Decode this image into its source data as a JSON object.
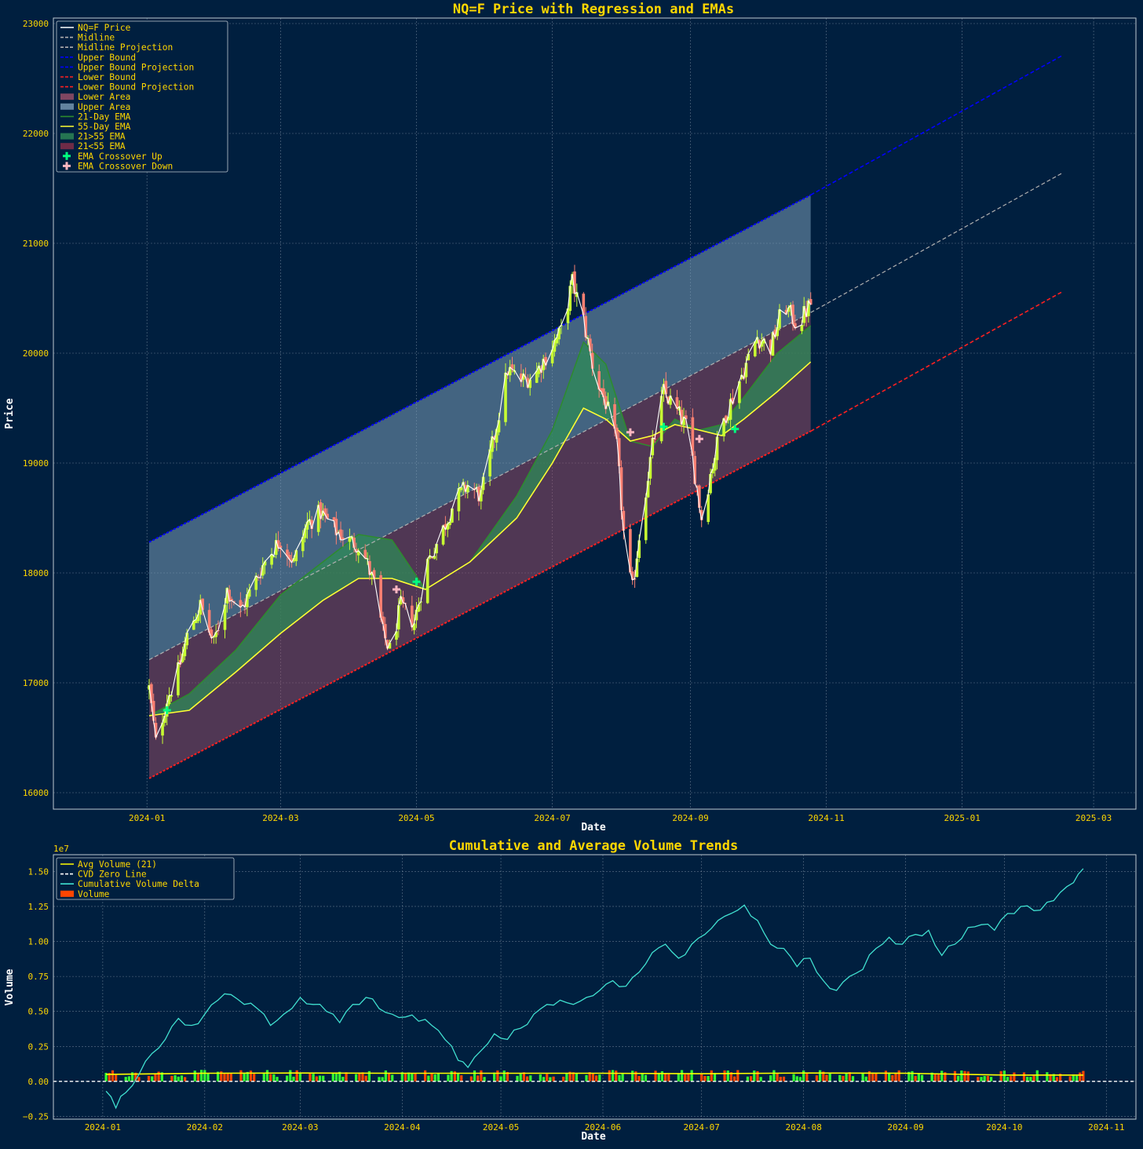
{
  "colors": {
    "background": "#001f3f",
    "title": "#ffd700",
    "axis_text": "#ffffff",
    "tick_text": "#ffd700",
    "grid": "#8899aa",
    "price_line": "#ffffff",
    "midline": "#b0b0b0",
    "upper_bound": "#0000ff",
    "lower_bound": "#ff2020",
    "upper_area": "#7a9cb8",
    "lower_area": "#a0506a",
    "ema21": "#2e8b2e",
    "ema55": "#ffff33",
    "ema_up_fill": "#2e8b57",
    "ema_down_fill": "#8b2e4a",
    "crossover_up": "#00ff7f",
    "crossover_down": "#ffb6c1",
    "candle_up": "#c8ff32",
    "candle_down": "#fa8072",
    "cvd": "#40e0d0",
    "avg_volume": "#ffff00",
    "volume_up": "#32ff32",
    "volume_down": "#ff4500",
    "zero_line": "#ffffff"
  },
  "chart_data": [
    {
      "type": "line",
      "title": "NQ=F Price with Regression and EMAs",
      "xlabel": "Date",
      "ylabel": "Price",
      "x_ticks": [
        "2024-01",
        "2024-03",
        "2024-05",
        "2024-07",
        "2024-09",
        "2024-11",
        "2025-01",
        "2025-03"
      ],
      "y_ticks": [
        16000,
        17000,
        18000,
        19000,
        20000,
        21000,
        22000,
        23000
      ],
      "xlim": [
        "2023-11-20",
        "2025-03-20"
      ],
      "ylim": [
        15850,
        23050
      ],
      "grid": true,
      "legend_position": "top-left",
      "legend": [
        "NQ=F Price",
        "Midline",
        "Midline Projection",
        "Upper Bound",
        "Upper Bound Projection",
        "Lower Bound",
        "Lower Bound Projection",
        "Lower Area",
        "Upper Area",
        "21-Day EMA",
        "55-Day EMA",
        "21>55 EMA",
        "21<55 EMA",
        "EMA Crossover Up",
        "EMA Crossover Down"
      ],
      "regression": {
        "start_date": "2024-01-02",
        "end_date": "2024-10-25",
        "projection_end_date": "2025-02-15",
        "midline_start": 17210,
        "midline_end": 20370,
        "midline_projection_end": 21640,
        "upper_start": 18280,
        "upper_end": 21440,
        "upper_projection_end": 22710,
        "lower_start": 16130,
        "lower_end": 19290,
        "lower_projection_end": 20560
      },
      "price_series": {
        "dates": [
          "2024-01-02",
          "2024-01-05",
          "2024-01-10",
          "2024-01-15",
          "2024-01-20",
          "2024-01-25",
          "2024-01-31",
          "2024-02-06",
          "2024-02-12",
          "2024-02-18",
          "2024-02-24",
          "2024-03-01",
          "2024-03-07",
          "2024-03-13",
          "2024-03-19",
          "2024-03-25",
          "2024-03-31",
          "2024-04-06",
          "2024-04-12",
          "2024-04-16",
          "2024-04-19",
          "2024-04-24",
          "2024-04-30",
          "2024-05-06",
          "2024-05-12",
          "2024-05-18",
          "2024-05-24",
          "2024-05-30",
          "2024-06-05",
          "2024-06-11",
          "2024-06-17",
          "2024-06-23",
          "2024-06-29",
          "2024-07-05",
          "2024-07-10",
          "2024-07-15",
          "2024-07-20",
          "2024-07-25",
          "2024-07-30",
          "2024-08-03",
          "2024-08-06",
          "2024-08-10",
          "2024-08-15",
          "2024-08-20",
          "2024-08-25",
          "2024-08-31",
          "2024-09-06",
          "2024-09-10",
          "2024-09-15",
          "2024-09-20",
          "2024-09-26",
          "2024-10-01",
          "2024-10-07",
          "2024-10-13",
          "2024-10-19",
          "2024-10-25"
        ],
        "close": [
          16950,
          16450,
          16850,
          17100,
          17500,
          17700,
          17350,
          17850,
          17650,
          17900,
          18150,
          18300,
          18100,
          18450,
          18550,
          18400,
          18300,
          18250,
          17900,
          17450,
          17300,
          17700,
          17550,
          18100,
          18350,
          18650,
          18800,
          18700,
          19250,
          19850,
          19750,
          19800,
          20000,
          20200,
          20650,
          20300,
          19800,
          19550,
          19150,
          18100,
          17850,
          18500,
          19150,
          19650,
          19500,
          19300,
          18500,
          18900,
          19350,
          19600,
          19900,
          20150,
          20050,
          20450,
          20250,
          20450
        ]
      },
      "ema21": {
        "dates": [
          "2024-01-02",
          "2024-01-20",
          "2024-02-10",
          "2024-03-01",
          "2024-03-20",
          "2024-04-05",
          "2024-04-20",
          "2024-05-05",
          "2024-05-25",
          "2024-06-15",
          "2024-07-01",
          "2024-07-15",
          "2024-07-25",
          "2024-08-05",
          "2024-08-15",
          "2024-08-25",
          "2024-09-05",
          "2024-09-15",
          "2024-09-25",
          "2024-10-10",
          "2024-10-25"
        ],
        "values": [
          16700,
          16900,
          17300,
          17800,
          18100,
          18350,
          18300,
          17850,
          18100,
          18700,
          19300,
          20100,
          19900,
          19200,
          19150,
          19400,
          19300,
          19350,
          19600,
          20000,
          20250
        ]
      },
      "ema55": {
        "dates": [
          "2024-01-02",
          "2024-01-20",
          "2024-02-10",
          "2024-03-01",
          "2024-03-20",
          "2024-04-05",
          "2024-04-20",
          "2024-05-05",
          "2024-05-25",
          "2024-06-15",
          "2024-07-01",
          "2024-07-15",
          "2024-07-25",
          "2024-08-05",
          "2024-08-15",
          "2024-08-25",
          "2024-09-05",
          "2024-09-15",
          "2024-09-25",
          "2024-10-10",
          "2024-10-25"
        ],
        "values": [
          16700,
          16750,
          17100,
          17450,
          17750,
          17950,
          17950,
          17850,
          18100,
          18500,
          19000,
          19500,
          19400,
          19200,
          19250,
          19350,
          19300,
          19250,
          19400,
          19650,
          19920
        ]
      },
      "crossovers_up": [
        [
          "2024-01-10",
          16750
        ],
        [
          "2024-05-01",
          17920
        ],
        [
          "2024-08-20",
          19330
        ],
        [
          "2024-09-21",
          19310
        ]
      ],
      "crossovers_down": [
        [
          "2024-04-22",
          17850
        ],
        [
          "2024-08-05",
          19280
        ],
        [
          "2024-09-05",
          19220
        ]
      ]
    },
    {
      "type": "line",
      "title": "Cumulative and Average Volume Trends",
      "xlabel": "Date",
      "ylabel": "Volume",
      "y_scale_label": "1e7",
      "x_ticks": [
        "2024-01",
        "2024-02",
        "2024-03",
        "2024-04",
        "2024-05",
        "2024-06",
        "2024-07",
        "2024-08",
        "2024-09",
        "2024-10",
        "2024-11"
      ],
      "y_ticks": [
        "−0.25",
        "0.00",
        "0.25",
        "0.50",
        "0.75",
        "1.00",
        "1.25",
        "1.50"
      ],
      "xlim": [
        "2023-12-17",
        "2024-11-10"
      ],
      "ylim": [
        -0.27,
        1.62
      ],
      "grid": true,
      "legend_position": "top-left",
      "legend": [
        "Avg Volume (21)",
        "CVD Zero Line",
        "Cumulative Volume Delta",
        "Volume"
      ],
      "cvd": {
        "dates": [
          "2024-01-02",
          "2024-01-05",
          "2024-01-08",
          "2024-01-12",
          "2024-01-16",
          "2024-01-20",
          "2024-01-24",
          "2024-01-28",
          "2024-02-01",
          "2024-02-05",
          "2024-02-09",
          "2024-02-13",
          "2024-02-17",
          "2024-02-21",
          "2024-02-25",
          "2024-03-01",
          "2024-03-05",
          "2024-03-09",
          "2024-03-13",
          "2024-03-17",
          "2024-03-21",
          "2024-03-25",
          "2024-03-29",
          "2024-04-02",
          "2024-04-06",
          "2024-04-10",
          "2024-04-14",
          "2024-04-18",
          "2024-04-21",
          "2024-04-25",
          "2024-04-29",
          "2024-05-03",
          "2024-05-07",
          "2024-05-11",
          "2024-05-15",
          "2024-05-19",
          "2024-05-23",
          "2024-05-27",
          "2024-05-31",
          "2024-06-04",
          "2024-06-08",
          "2024-06-12",
          "2024-06-16",
          "2024-06-20",
          "2024-06-24",
          "2024-06-28",
          "2024-07-02",
          "2024-07-06",
          "2024-07-10",
          "2024-07-14",
          "2024-07-18",
          "2024-07-22",
          "2024-07-26",
          "2024-07-30",
          "2024-08-03",
          "2024-08-07",
          "2024-08-11",
          "2024-08-15",
          "2024-08-19",
          "2024-08-23",
          "2024-08-27",
          "2024-08-31",
          "2024-09-04",
          "2024-09-08",
          "2024-09-12",
          "2024-09-16",
          "2024-09-20",
          "2024-09-24",
          "2024-09-28",
          "2024-10-02",
          "2024-10-06",
          "2024-10-10",
          "2024-10-14",
          "2024-10-18",
          "2024-10-22",
          "2024-10-25"
        ],
        "values": [
          -0.07,
          -0.19,
          -0.08,
          0.05,
          0.2,
          0.3,
          0.45,
          0.4,
          0.48,
          0.58,
          0.62,
          0.55,
          0.52,
          0.4,
          0.48,
          0.6,
          0.55,
          0.5,
          0.42,
          0.55,
          0.6,
          0.52,
          0.48,
          0.46,
          0.43,
          0.4,
          0.3,
          0.15,
          0.1,
          0.22,
          0.34,
          0.3,
          0.38,
          0.48,
          0.55,
          0.58,
          0.55,
          0.6,
          0.65,
          0.72,
          0.68,
          0.78,
          0.92,
          0.98,
          0.88,
          0.98,
          1.05,
          1.15,
          1.2,
          1.26,
          1.15,
          0.98,
          0.95,
          0.82,
          0.88,
          0.72,
          0.65,
          0.75,
          0.8,
          0.95,
          1.03,
          0.98,
          1.05,
          1.08,
          0.9,
          0.98,
          1.1,
          1.12,
          1.08,
          1.2,
          1.25,
          1.22,
          1.28,
          1.35,
          1.42,
          1.52
        ]
      },
      "avg_volume": {
        "dates": [
          "2024-01-02",
          "2024-02-01",
          "2024-03-01",
          "2024-04-01",
          "2024-05-01",
          "2024-06-01",
          "2024-07-01",
          "2024-08-01",
          "2024-09-01",
          "2024-10-01",
          "2024-10-25"
        ],
        "values": [
          0.05,
          0.058,
          0.06,
          0.058,
          0.058,
          0.058,
          0.055,
          0.06,
          0.058,
          0.045,
          0.045
        ]
      },
      "volume_bar_range": [
        0.03,
        0.1
      ]
    }
  ]
}
